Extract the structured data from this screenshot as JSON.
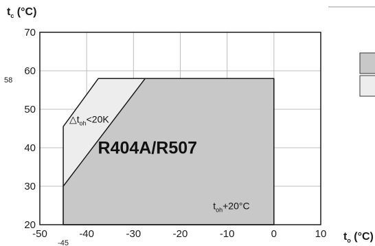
{
  "chart_data": {
    "type": "area",
    "title": "",
    "xlabel": {
      "main": "t",
      "sub": "o",
      "unit": " (°C)"
    },
    "ylabel": {
      "main": "t",
      "sub": "c",
      "unit": " (°C)"
    },
    "xlim": [
      -50,
      10
    ],
    "ylim": [
      20,
      70
    ],
    "xticks": [
      -50,
      -40,
      -30,
      -20,
      -10,
      0,
      10
    ],
    "yticks": [
      20,
      30,
      40,
      50,
      60,
      70
    ],
    "grid": true,
    "extra_x_marker": {
      "value": -45,
      "label": "-45"
    },
    "extra_y_marker": {
      "value": 58,
      "label": "58"
    },
    "regions": [
      {
        "name": "outer",
        "fill": "#ededed",
        "points": [
          [
            -45,
            20
          ],
          [
            -45,
            45.5
          ],
          [
            -37.5,
            58
          ],
          [
            0,
            58
          ],
          [
            0,
            20
          ]
        ]
      },
      {
        "name": "main",
        "fill": "#c8c8c8",
        "points": [
          [
            -45,
            20
          ],
          [
            -45,
            30
          ],
          [
            -27.5,
            58
          ],
          [
            0,
            58
          ],
          [
            0,
            20
          ]
        ]
      }
    ],
    "annotations": [
      {
        "text": "R404A/R507",
        "x": -27,
        "y": 38.5
      },
      {
        "main": "△t",
        "sub": "oh",
        "rest": "<20K",
        "x": -43.7,
        "y": 46.5
      },
      {
        "main": "t",
        "sub": "oh",
        "rest": "+20°C",
        "x": -13,
        "y": 24
      }
    ],
    "legend": {
      "placement": "right",
      "swatches": [
        {
          "fill": "#c8c8c8"
        },
        {
          "fill": "#ededed"
        }
      ]
    }
  }
}
